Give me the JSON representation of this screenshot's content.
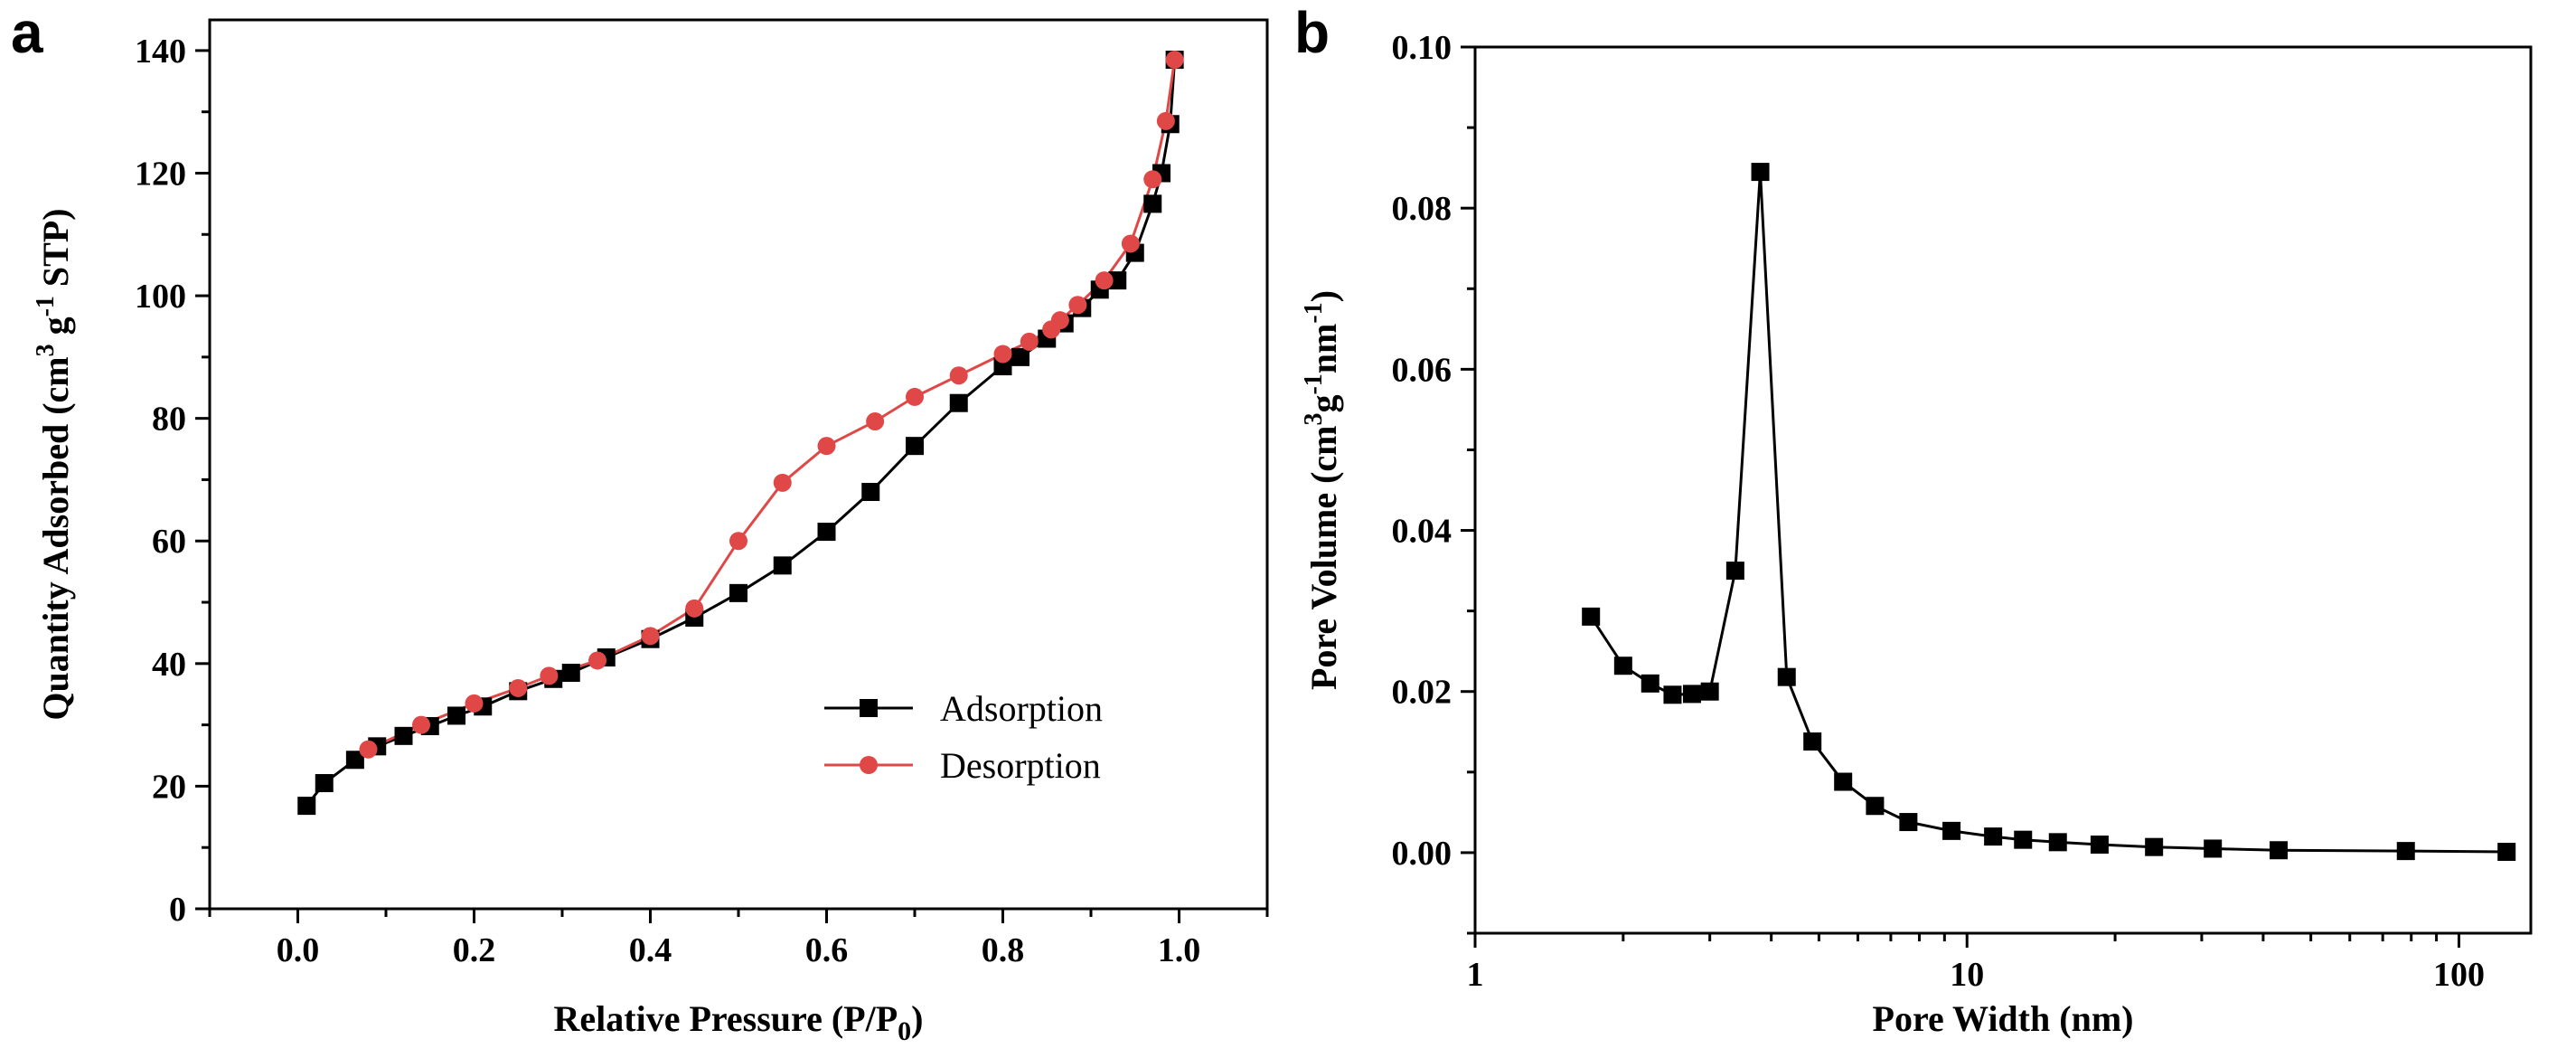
{
  "chart_data": [
    {
      "panel_label": "a",
      "type": "line",
      "xlabel": "Relative Pressure (P/P",
      "xlabel_sub": "0",
      "xlabel_end": ")",
      "ylabel_pre": "Quantity Adsorbed (cm",
      "ylabel_sup": "3",
      "ylabel_mid": " g",
      "ylabel_sup2": "-1",
      "ylabel_end": " STP)",
      "xlim": [
        -0.1,
        1.1
      ],
      "ylim": [
        0,
        145
      ],
      "x_ticks": [
        0.0,
        0.2,
        0.4,
        0.6,
        0.8,
        1.0
      ],
      "x_tick_labels": [
        "0.0",
        "0.2",
        "0.4",
        "0.6",
        "0.8",
        "1.0"
      ],
      "y_ticks": [
        0,
        20,
        40,
        60,
        80,
        100,
        120,
        140
      ],
      "y_tick_labels": [
        "0",
        "20",
        "40",
        "60",
        "80",
        "100",
        "120",
        "140"
      ],
      "legend_position": "lower-right",
      "series": [
        {
          "name": "Adsorption",
          "color": "#000000",
          "marker": "square",
          "x": [
            0.01,
            0.03,
            0.065,
            0.09,
            0.12,
            0.15,
            0.18,
            0.21,
            0.25,
            0.29,
            0.31,
            0.35,
            0.4,
            0.45,
            0.5,
            0.55,
            0.6,
            0.65,
            0.7,
            0.75,
            0.8,
            0.82,
            0.85,
            0.87,
            0.89,
            0.91,
            0.93,
            0.95,
            0.97,
            0.98,
            0.99,
            0.995
          ],
          "y": [
            16.8,
            20.5,
            24.3,
            26.5,
            28.2,
            29.8,
            31.5,
            33.0,
            35.5,
            37.5,
            38.5,
            41.0,
            44.0,
            47.5,
            51.5,
            56.0,
            61.5,
            68.0,
            75.5,
            82.5,
            88.5,
            90.0,
            93.0,
            95.5,
            98.0,
            101.0,
            102.5,
            107.0,
            115.0,
            120.0,
            128.0,
            138.5
          ]
        },
        {
          "name": "Desorption",
          "color": "#e04848",
          "marker": "circle",
          "x": [
            0.08,
            0.14,
            0.2,
            0.25,
            0.285,
            0.34,
            0.4,
            0.45,
            0.5,
            0.55,
            0.6,
            0.655,
            0.7,
            0.75,
            0.8,
            0.83,
            0.855,
            0.865,
            0.885,
            0.915,
            0.945,
            0.97,
            0.985,
            0.995
          ],
          "y": [
            26.0,
            30.0,
            33.5,
            36.0,
            38.0,
            40.5,
            44.5,
            49.0,
            60.0,
            69.5,
            75.5,
            79.5,
            83.5,
            87.0,
            90.5,
            92.5,
            94.5,
            96.0,
            98.5,
            102.5,
            108.5,
            119.0,
            128.5,
            138.5
          ]
        }
      ]
    },
    {
      "panel_label": "b",
      "type": "line",
      "xlabel": "Pore Width (nm)",
      "ylabel_pre": "Pore Volume (cm",
      "ylabel_sup": "3",
      "ylabel_mid": "g",
      "ylabel_sup2": "-1",
      "ylabel_mid2": "nm",
      "ylabel_sup3": "-1",
      "ylabel_end": ")",
      "xscale": "log",
      "xlim": [
        1,
        140
      ],
      "ylim": [
        -0.01,
        0.1
      ],
      "x_ticks": [
        1,
        10,
        100
      ],
      "x_tick_labels": [
        "1",
        "10",
        "100"
      ],
      "y_ticks": [
        0.0,
        0.02,
        0.04,
        0.06,
        0.08,
        0.1
      ],
      "y_tick_labels": [
        "0.00",
        "0.02",
        "0.04",
        "0.06",
        "0.08",
        "0.10"
      ],
      "series": [
        {
          "color": "#000000",
          "marker": "square",
          "x": [
            1.72,
            2.0,
            2.27,
            2.52,
            2.76,
            3.0,
            3.38,
            3.8,
            4.3,
            4.85,
            5.6,
            6.5,
            7.6,
            9.3,
            11.3,
            13.0,
            15.3,
            18.6,
            24.0,
            31.6,
            43.0,
            78.0,
            125.0
          ],
          "y": [
            0.0293,
            0.0232,
            0.021,
            0.0196,
            0.0197,
            0.02,
            0.035,
            0.0845,
            0.0218,
            0.0138,
            0.0088,
            0.0058,
            0.0038,
            0.0027,
            0.002,
            0.0016,
            0.0013,
            0.001,
            0.0007,
            0.0005,
            0.0003,
            0.0002,
            0.0001
          ]
        }
      ]
    }
  ]
}
